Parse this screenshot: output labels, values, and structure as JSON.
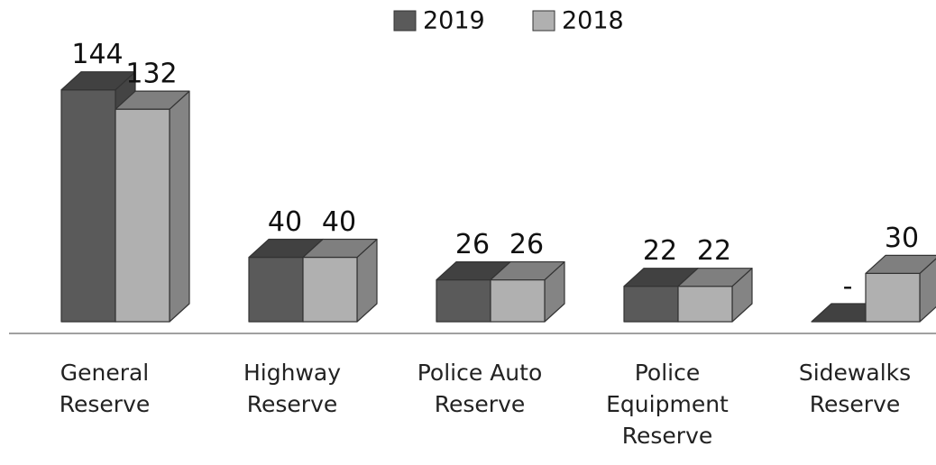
{
  "chart_data": {
    "type": "bar3d",
    "categories": [
      "General Reserve",
      "Highway Reserve",
      "Police Auto Reserve",
      "Police Equipment Reserve",
      "Sidewalks Reserve"
    ],
    "series": [
      {
        "name": "2019",
        "color": "#5a5a5a",
        "values": [
          144,
          40,
          26,
          22,
          0
        ],
        "value_labels": [
          "144",
          "40",
          "26",
          "22",
          "-"
        ]
      },
      {
        "name": "2018",
        "color": "#b0b0b0",
        "values": [
          132,
          40,
          26,
          22,
          30
        ],
        "value_labels": [
          "132",
          "40",
          "26",
          "22",
          "30"
        ]
      }
    ],
    "ylim": [
      0,
      150
    ],
    "legend": "top"
  }
}
